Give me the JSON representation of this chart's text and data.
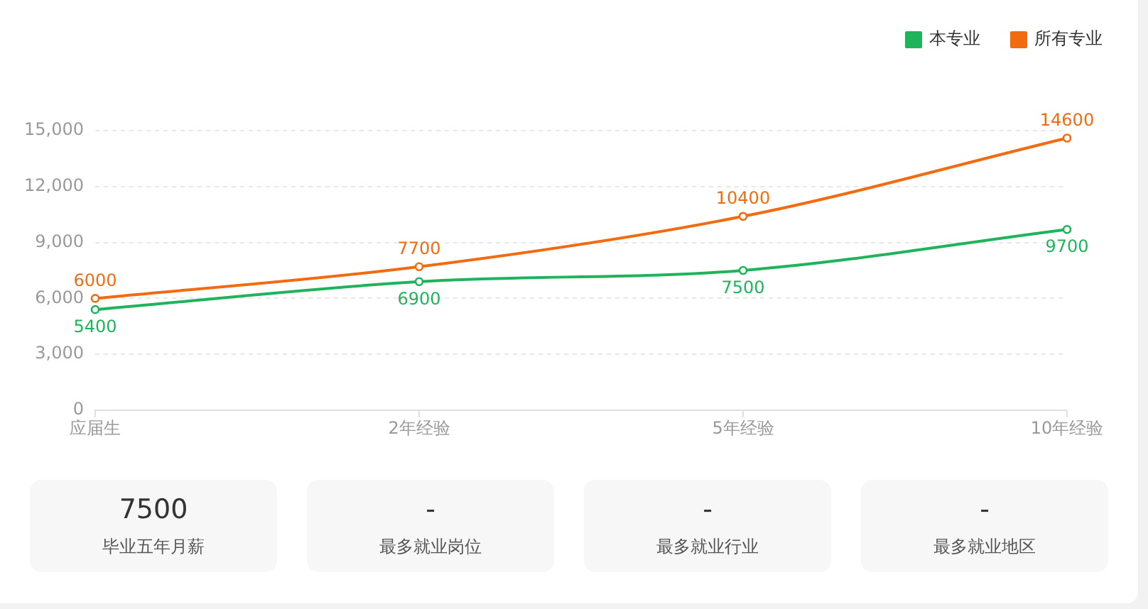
{
  "chart_data": [
    {
      "type": "line",
      "categories": [
        "应届生",
        "2年经验",
        "5年经验",
        "10年经验"
      ],
      "series": [
        {
          "name": "本专业",
          "color": "#1fb35b",
          "values": [
            5400,
            6900,
            7500,
            9700
          ]
        },
        {
          "name": "所有专业",
          "color": "#f26b10",
          "values": [
            6000,
            7700,
            10400,
            14600
          ]
        }
      ],
      "ylim": [
        0,
        15000
      ],
      "yticks": [
        0,
        {
          "value": 3000,
          "label": "3,000"
        },
        {
          "value": 6000,
          "label": "6,000"
        },
        {
          "value": 9000,
          "label": "9,000"
        },
        {
          "value": 12000,
          "label": "12,000"
        },
        {
          "value": 15000,
          "label": "15,000"
        }
      ],
      "grid": "y",
      "legend": "top right",
      "marker": "circle",
      "line_style": "solid",
      "data_labels": true
    },
    {
      "type": "other",
      "annotations": [
        "7500",
        "毕业五年月薪",
        "-",
        "最多就业岗位",
        "-",
        "最多就业行业",
        "-",
        "最多就业地区"
      ]
    }
  ]
}
